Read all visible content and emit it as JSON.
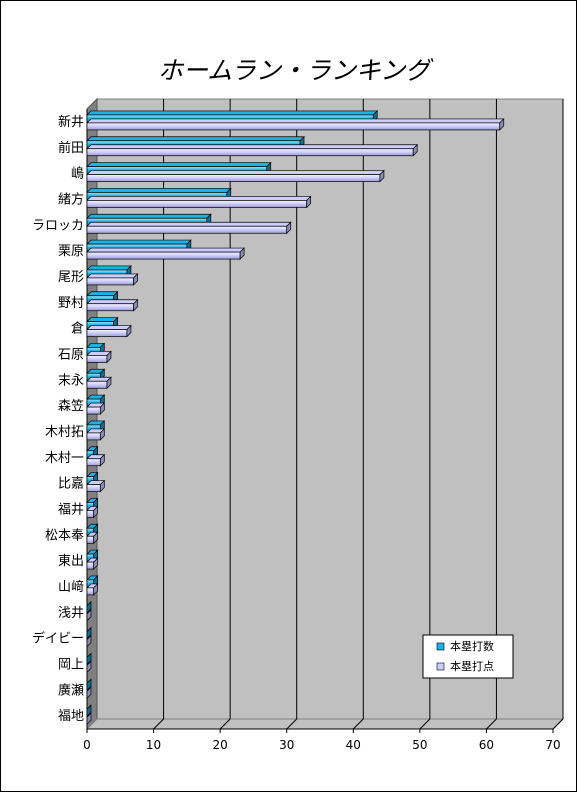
{
  "chart_data": {
    "type": "bar",
    "orientation": "horizontal",
    "title": "ホームラン・ランキング",
    "categories": [
      "新井",
      "前田",
      "嶋",
      "緒方",
      "ラロッカ",
      "栗原",
      "尾形",
      "野村",
      "倉",
      "石原",
      "末永",
      "森笠",
      "木村拓",
      "木村一",
      "比嘉",
      "福井",
      "松本奉",
      "東出",
      "山﨑",
      "浅井",
      "デイビー",
      "岡上",
      "廣瀬",
      "福地"
    ],
    "series": [
      {
        "name": "本塁打数",
        "color": "#1ab3e6",
        "values": [
          43,
          32,
          27,
          21,
          18,
          15,
          6,
          4,
          4,
          2,
          2,
          2,
          2,
          1,
          1,
          1,
          1,
          1,
          1,
          0,
          0,
          0,
          0,
          0
        ]
      },
      {
        "name": "本塁打点",
        "color": "#ccccff",
        "values": [
          62,
          49,
          44,
          33,
          30,
          23,
          7,
          7,
          6,
          3,
          3,
          2,
          2,
          2,
          2,
          1,
          1,
          1,
          1,
          0,
          0,
          0,
          0,
          0
        ]
      }
    ],
    "xlim": [
      0,
      70
    ],
    "ticks": [
      "0",
      "10",
      "20",
      "30",
      "40",
      "50",
      "60",
      "70"
    ],
    "grid": true,
    "legend_position": "bottom-right",
    "plot_background": "#c0c0c0"
  }
}
